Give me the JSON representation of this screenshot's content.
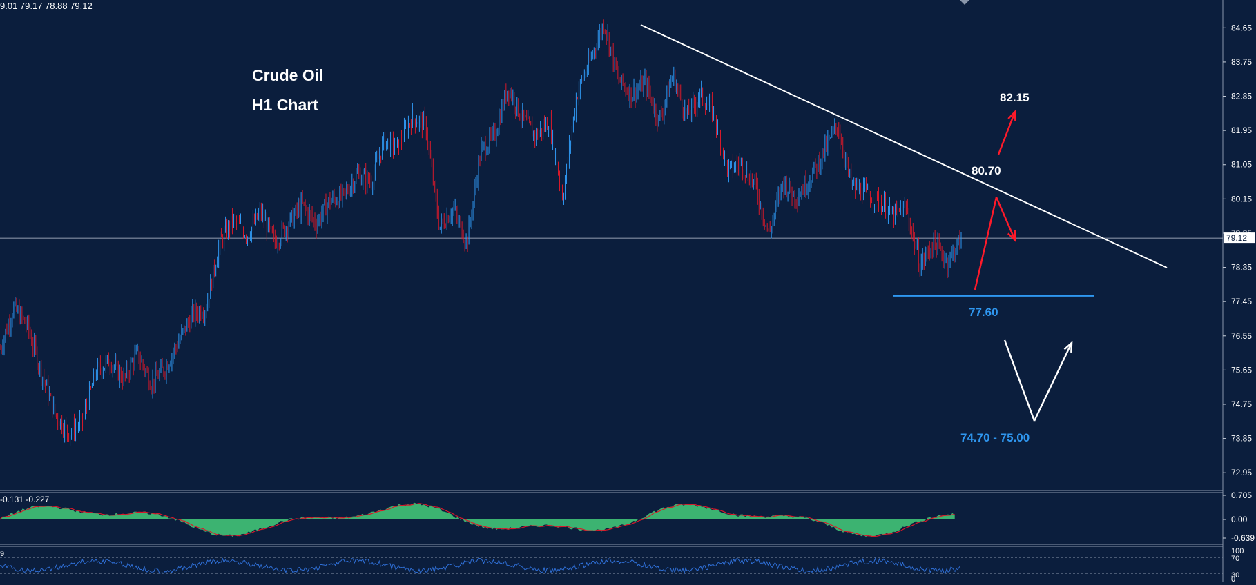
{
  "ohlc_text": "9.01 79.17 78.88 79.12",
  "title": "Crude Oil",
  "subtitle": "H1 Chart",
  "annotations": {
    "target_up": "82.15",
    "resistance": "80.70",
    "support": "77.60",
    "target_down": "74.70 - 75.00"
  },
  "colors": {
    "background": "#0b1e3d",
    "bull": "#2f97f0",
    "bear": "#d8192a",
    "macd_hist": "#3cb371",
    "signal": "#d8192a",
    "rsi": "#2f6fd6",
    "support_line": "#2f97f0",
    "arrow_red": "#ff1a2a",
    "text": "#ffffff",
    "support_text": "#2f97f0"
  },
  "macd_text": "-0.131 -0.227",
  "rsi_text": "9",
  "chart_data": {
    "type": "candlestick",
    "title": "Crude Oil",
    "subtitle": "H1 Chart",
    "current_price": 79.12,
    "ylim": [
      72.5,
      85.2
    ],
    "yticks": [
      "84.65",
      "83.75",
      "82.85",
      "81.95",
      "81.05",
      "80.15",
      "79.25",
      "78.35",
      "77.45",
      "76.55",
      "75.65",
      "74.75",
      "73.85",
      "72.95"
    ],
    "price_path": [
      76.2,
      77.3,
      76.8,
      75.6,
      74.5,
      74.0,
      74.3,
      75.6,
      75.9,
      75.4,
      76.1,
      75.3,
      75.7,
      76.4,
      77.1,
      77.3,
      79.0,
      79.6,
      79.2,
      79.8,
      79.0,
      79.5,
      80.0,
      79.5,
      80.1,
      80.2,
      80.8,
      80.6,
      81.7,
      81.5,
      82.3,
      82.1,
      79.4,
      79.9,
      79.0,
      81.4,
      81.8,
      83.1,
      82.3,
      81.8,
      82.2,
      80.2,
      82.9,
      83.8,
      84.8,
      83.3,
      82.9,
      83.2,
      82.2,
      83.4,
      82.3,
      82.9,
      82.4,
      80.9,
      81.1,
      80.5,
      79.2,
      80.6,
      80.2,
      80.7,
      81.4,
      82.1,
      80.5,
      80.3,
      80.1,
      79.7,
      79.9,
      78.4,
      79.0,
      78.5,
      79.1
    ],
    "levels": {
      "resistance": 80.7,
      "support": 77.6,
      "target_up": 82.15,
      "target_down": [
        74.7,
        75.0
      ]
    },
    "trendline": [
      {
        "i": 0.0,
        "y": 84.8
      },
      {
        "i": 1.0,
        "y": 78.5
      }
    ],
    "macd": {
      "values": "-0.131 -0.227",
      "yticks": [
        "0.705",
        "0.00",
        "-0.639"
      ]
    },
    "rsi": {
      "yticks": [
        "100",
        "70",
        "30",
        "0"
      ]
    }
  }
}
